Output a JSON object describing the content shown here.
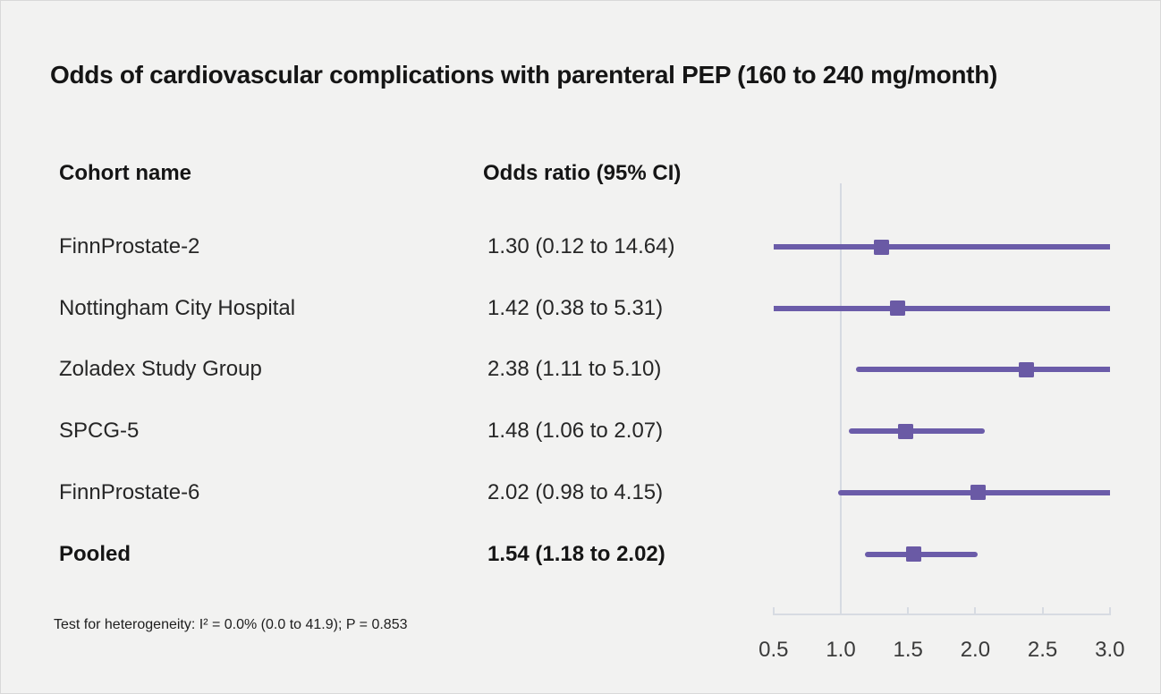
{
  "title": "Odds of cardiovascular complications with parenteral PEP (160 to 240 mg/month)",
  "table": {
    "cohort_header": "Cohort name",
    "or_header": "Odds ratio (95% CI)"
  },
  "footnote": "Test for heterogeneity: I² = 0.0% (0.0 to 41.9); P = 0.853",
  "colors": {
    "background": "#f2f2f1",
    "marker_purple": "#6a5aa5",
    "ci_line_purple": "#6b5ca9",
    "reference_line": "#d6dae2",
    "axis_line": "#d7dbe2",
    "text": "#151515"
  },
  "chart_data": {
    "type": "forest",
    "title": "Odds of cardiovascular complications with parenteral PEP (160 to 240 mg/month)",
    "x_axis": {
      "range": [
        0.5,
        3.0
      ],
      "ticks": [
        0.5,
        1.0,
        1.5,
        2.0,
        2.5,
        3.0
      ],
      "tick_labels": [
        "0.5",
        "1.0",
        "1.5",
        "2.0",
        "2.5",
        "3.0"
      ],
      "reference_value": 1.0,
      "grid": false
    },
    "rows": [
      {
        "cohort": "FinnProstate-2",
        "or_label": "1.30 (0.12 to 14.64)",
        "or": 1.3,
        "ci_low": 0.12,
        "ci_high": 14.64,
        "pooled": false
      },
      {
        "cohort": "Nottingham City Hospital",
        "or_label": "1.42 (0.38 to 5.31)",
        "or": 1.42,
        "ci_low": 0.38,
        "ci_high": 5.31,
        "pooled": false
      },
      {
        "cohort": "Zoladex Study Group",
        "or_label": "2.38 (1.11 to 5.10)",
        "or": 2.38,
        "ci_low": 1.11,
        "ci_high": 5.1,
        "pooled": false
      },
      {
        "cohort": "SPCG-5",
        "or_label": "1.48 (1.06 to 2.07)",
        "or": 1.48,
        "ci_low": 1.06,
        "ci_high": 2.07,
        "pooled": false
      },
      {
        "cohort": "FinnProstate-6",
        "or_label": "2.02 (0.98 to 4.15)",
        "or": 2.02,
        "ci_low": 0.98,
        "ci_high": 4.15,
        "pooled": false
      },
      {
        "cohort": "Pooled",
        "or_label": "1.54 (1.18 to 2.02)",
        "or": 1.54,
        "ci_low": 1.18,
        "ci_high": 2.02,
        "pooled": true
      }
    ],
    "heterogeneity_note": "Test for heterogeneity: I² = 0.0% (0.0 to 41.9); P = 0.853"
  }
}
